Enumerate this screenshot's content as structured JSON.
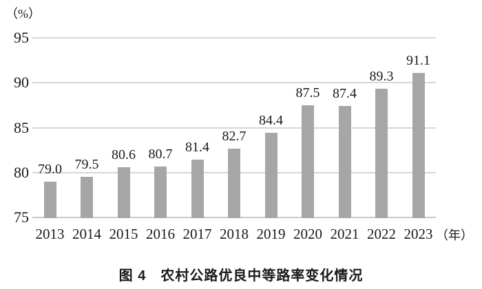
{
  "figure": {
    "caption": "图 4　农村公路优良中等路率变化情况",
    "y_axis_unit": "（%）",
    "x_axis_unit": "（年）"
  },
  "chart_data": {
    "type": "bar",
    "title": "图 4　农村公路优良中等路率变化情况",
    "categories": [
      "2013",
      "2014",
      "2015",
      "2016",
      "2017",
      "2018",
      "2019",
      "2020",
      "2021",
      "2022",
      "2023"
    ],
    "values": [
      79.0,
      79.5,
      80.6,
      80.7,
      81.4,
      82.7,
      84.4,
      87.5,
      87.4,
      89.3,
      91.1
    ],
    "value_labels": [
      "79.0",
      "79.5",
      "80.6",
      "80.7",
      "81.4",
      "82.7",
      "84.4",
      "87.5",
      "87.4",
      "89.3",
      "91.1"
    ],
    "xlabel": "（年）",
    "ylabel": "（%）",
    "ylim": [
      75,
      95
    ],
    "yticks": [
      75,
      80,
      85,
      90,
      95
    ],
    "grid": true,
    "legend": "none",
    "colors": {
      "bar": "#a6a6a6",
      "gridline": "#d6d6d6",
      "baseline": "#c9c9c9",
      "text": "#1a1a1a",
      "background": "#ffffff"
    }
  }
}
